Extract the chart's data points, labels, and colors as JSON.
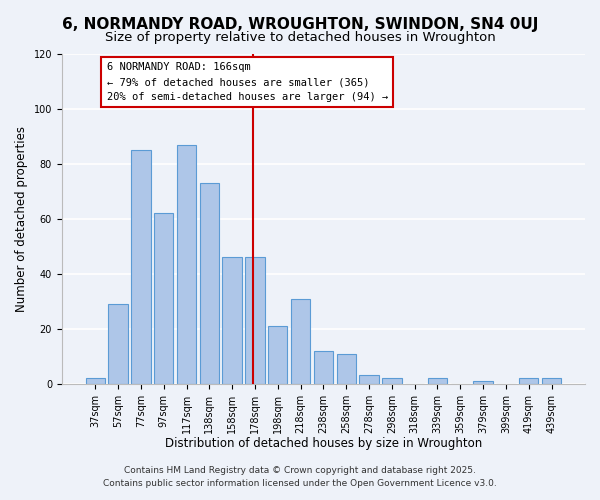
{
  "title": "6, NORMANDY ROAD, WROUGHTON, SWINDON, SN4 0UJ",
  "subtitle": "Size of property relative to detached houses in Wroughton",
  "xlabel": "Distribution of detached houses by size in Wroughton",
  "ylabel": "Number of detached properties",
  "bar_labels": [
    "37sqm",
    "57sqm",
    "77sqm",
    "97sqm",
    "117sqm",
    "138sqm",
    "158sqm",
    "178sqm",
    "198sqm",
    "218sqm",
    "238sqm",
    "258sqm",
    "278sqm",
    "298sqm",
    "318sqm",
    "339sqm",
    "359sqm",
    "379sqm",
    "399sqm",
    "419sqm",
    "439sqm"
  ],
  "bar_heights": [
    2,
    29,
    85,
    62,
    87,
    73,
    46,
    46,
    21,
    31,
    12,
    11,
    3,
    2,
    0,
    2,
    0,
    1,
    0,
    2,
    2
  ],
  "bar_color": "#aec6e8",
  "bar_edge_color": "#5b9bd5",
  "ylim": [
    0,
    120
  ],
  "yticks": [
    0,
    20,
    40,
    60,
    80,
    100,
    120
  ],
  "vline_color": "#cc0000",
  "annotation_title": "6 NORMANDY ROAD: 166sqm",
  "annotation_line1": "← 79% of detached houses are smaller (365)",
  "annotation_line2": "20% of semi-detached houses are larger (94) →",
  "annotation_box_color": "#ffffff",
  "annotation_box_edge": "#cc0000",
  "footer1": "Contains HM Land Registry data © Crown copyright and database right 2025.",
  "footer2": "Contains public sector information licensed under the Open Government Licence v3.0.",
  "background_color": "#eef2f9",
  "grid_color": "#ffffff",
  "title_fontsize": 11,
  "subtitle_fontsize": 9.5,
  "axis_label_fontsize": 8.5,
  "tick_fontsize": 7,
  "annotation_fontsize": 7.5,
  "footer_fontsize": 6.5
}
